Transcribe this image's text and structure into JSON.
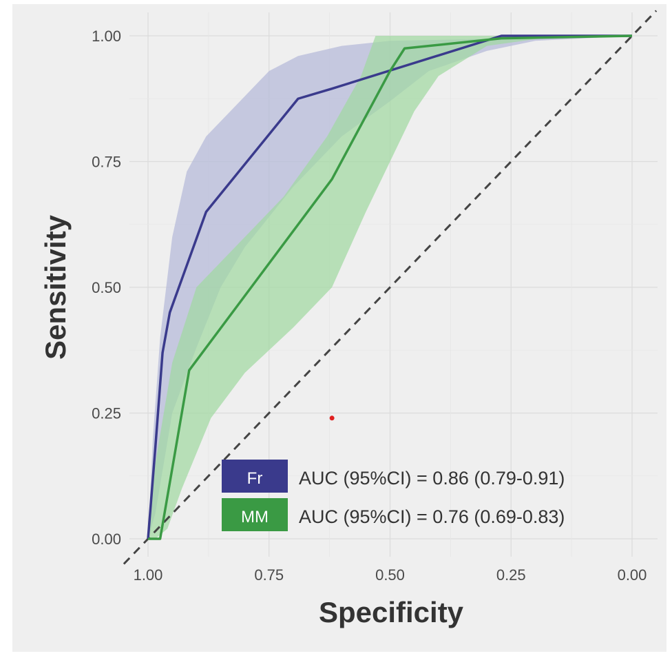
{
  "chart_data": {
    "type": "line",
    "title": "",
    "xlabel": "Specificity",
    "ylabel": "Sensitivity",
    "xlim": [
      1.0,
      0.0
    ],
    "ylim": [
      0.0,
      1.0
    ],
    "x_reversed": true,
    "grid": true,
    "legend_position": "bottom-right",
    "x_ticks": [
      1.0,
      0.75,
      0.5,
      0.25,
      0.0
    ],
    "x_tick_labels": [
      "1.00",
      "0.75",
      "0.50",
      "0.25",
      "0.00"
    ],
    "y_ticks": [
      0.0,
      0.25,
      0.5,
      0.75,
      1.0
    ],
    "y_tick_labels": [
      "0.00",
      "0.25",
      "0.50",
      "0.75",
      "1.00"
    ],
    "reference_line": {
      "from": [
        1.0,
        0.0
      ],
      "to": [
        0.0,
        1.0
      ],
      "style": "dashed"
    },
    "series": [
      {
        "name": "Fr",
        "legend_text": "AUC (95%CI) = 0.86 (0.79-0.91)",
        "color": "#3a3a8c",
        "band_color": "#b3b8d9",
        "specificity": [
          1.0,
          0.985,
          0.97,
          0.955,
          0.88,
          0.69,
          0.62,
          0.27,
          0.0
        ],
        "sensitivity": [
          0.0,
          0.18,
          0.37,
          0.45,
          0.65,
          0.875,
          0.895,
          1.0,
          1.0
        ],
        "ci_upper_specificity": [
          1.0,
          0.99,
          0.975,
          0.95,
          0.92,
          0.88,
          0.82,
          0.75,
          0.69,
          0.6,
          0.5,
          0.0
        ],
        "ci_upper_sensitivity": [
          0.0,
          0.2,
          0.4,
          0.6,
          0.73,
          0.8,
          0.86,
          0.93,
          0.96,
          0.98,
          0.99,
          1.0
        ],
        "ci_lower_specificity": [
          0.0,
          0.2,
          0.3,
          0.42,
          0.5,
          0.6,
          0.7,
          0.8,
          0.85,
          0.9,
          0.95,
          0.985,
          1.0
        ],
        "ci_lower_sensitivity": [
          1.0,
          0.99,
          0.97,
          0.93,
          0.87,
          0.8,
          0.7,
          0.58,
          0.5,
          0.38,
          0.25,
          0.05,
          0.0
        ]
      },
      {
        "name": "MM",
        "legend_text": "AUC (95%CI) = 0.76 (0.69-0.83)",
        "color": "#3a9a44",
        "band_color": "#9fd99f",
        "specificity": [
          1.0,
          0.975,
          0.915,
          0.62,
          0.5,
          0.47,
          0.27,
          0.0
        ],
        "sensitivity": [
          0.0,
          0.0,
          0.335,
          0.715,
          0.93,
          0.975,
          0.995,
          1.0
        ],
        "ci_upper_specificity": [
          1.0,
          0.985,
          0.95,
          0.9,
          0.82,
          0.72,
          0.63,
          0.56,
          0.53,
          0.3,
          0.0
        ],
        "ci_upper_sensitivity": [
          0.0,
          0.15,
          0.35,
          0.5,
          0.58,
          0.68,
          0.8,
          0.92,
          1.0,
          1.0,
          1.0
        ],
        "ci_lower_specificity": [
          0.0,
          0.15,
          0.3,
          0.4,
          0.45,
          0.5,
          0.55,
          0.62,
          0.7,
          0.8,
          0.87,
          0.93,
          0.96,
          0.985
        ],
        "ci_lower_sensitivity": [
          1.0,
          1.0,
          0.98,
          0.92,
          0.85,
          0.75,
          0.65,
          0.5,
          0.42,
          0.33,
          0.24,
          0.1,
          0.02,
          0.0
        ]
      }
    ],
    "annotations": [
      {
        "type": "dot",
        "color": "#e02020",
        "x": 0.62,
        "y": 0.24
      }
    ]
  }
}
